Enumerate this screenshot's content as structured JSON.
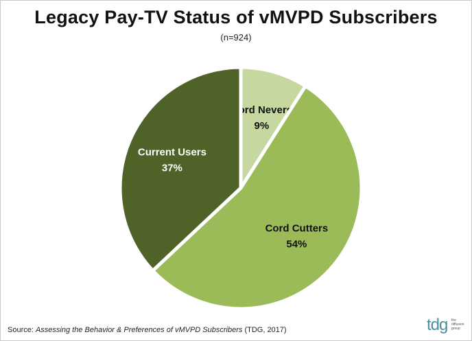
{
  "chart_data": {
    "type": "pie",
    "title": "Legacy Pay-TV Status of vMVPD Subscribers",
    "subtitle": "(n=924)",
    "slices": [
      {
        "label": "Cord Nevers",
        "value": 9,
        "value_label": "9%",
        "color": "#c6d89f"
      },
      {
        "label": "Cord Cutters",
        "value": 54,
        "value_label": "54%",
        "color": "#9bbb59"
      },
      {
        "label": "Current Users",
        "value": 37,
        "value_label": "37%",
        "color": "#4f6228"
      }
    ],
    "start_angle": "12 o'clock",
    "direction": "clockwise"
  },
  "source": {
    "prefix": "Source: ",
    "title": "Assessing the Behavior & Preferences of vMVPD Subscribers",
    "suffix": " (TDG, 2017)"
  },
  "logo": {
    "mark": "tdg",
    "sub": "the diffusion group"
  }
}
